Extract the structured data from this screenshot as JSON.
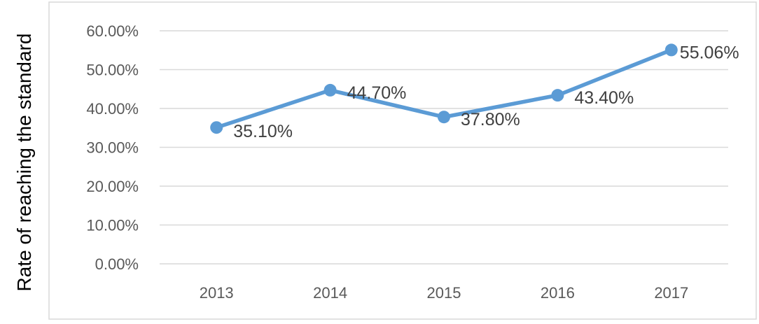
{
  "chart_data": {
    "type": "line",
    "title": "",
    "xlabel": "",
    "ylabel": "Rate of reaching the standard",
    "categories": [
      "2013",
      "2014",
      "2015",
      "2016",
      "2017"
    ],
    "series": [
      {
        "values": [
          35.1,
          44.7,
          37.8,
          43.4,
          55.06
        ],
        "data_labels": [
          "35.10%",
          "44.70%",
          "37.80%",
          "43.40%",
          "55.06%"
        ],
        "color": "#5B9BD5"
      }
    ],
    "yticks": [
      "0.00%",
      "10.00%",
      "20.00%",
      "30.00%",
      "40.00%",
      "50.00%",
      "60.00%"
    ],
    "ylim": [
      0,
      60
    ],
    "grid": true,
    "legend": "none",
    "colors": {
      "gridline": "#D9D9D9",
      "border": "#D9D9D9",
      "tick_text": "#595959",
      "label_text": "#404040"
    }
  }
}
